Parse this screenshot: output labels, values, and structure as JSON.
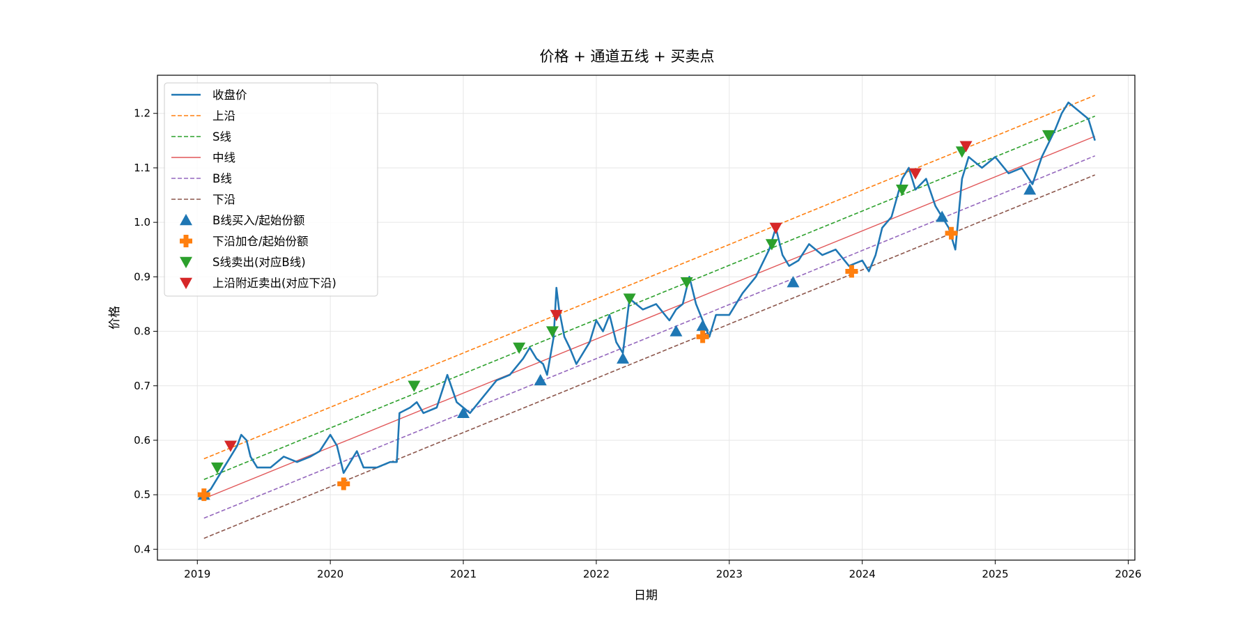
{
  "chart_data": {
    "type": "line",
    "title": "价格 + 通道五线 + 买卖点",
    "xlabel": "日期",
    "ylabel": "价格",
    "xlim": [
      2018.7,
      2026.05
    ],
    "ylim": [
      0.38,
      1.27
    ],
    "xticks": [
      2019,
      2020,
      2021,
      2022,
      2023,
      2024,
      2025,
      2026
    ],
    "xtick_labels": [
      "2019",
      "2020",
      "2021",
      "2022",
      "2023",
      "2024",
      "2025",
      "2026"
    ],
    "yticks": [
      0.4,
      0.5,
      0.6,
      0.7,
      0.8,
      0.9,
      1.0,
      1.1,
      1.2
    ],
    "ytick_labels": [
      "0.4",
      "0.5",
      "0.6",
      "0.7",
      "0.8",
      "0.9",
      "1.0",
      "1.1",
      "1.2"
    ],
    "grid": true,
    "legend_position": "upper-left",
    "series": [
      {
        "name": "收盘价",
        "style": "solid-thick",
        "color": "#1f77b4",
        "points": [
          [
            2019.05,
            0.5
          ],
          [
            2019.1,
            0.51
          ],
          [
            2019.15,
            0.53
          ],
          [
            2019.2,
            0.55
          ],
          [
            2019.25,
            0.57
          ],
          [
            2019.3,
            0.59
          ],
          [
            2019.33,
            0.61
          ],
          [
            2019.37,
            0.6
          ],
          [
            2019.4,
            0.57
          ],
          [
            2019.45,
            0.55
          ],
          [
            2019.55,
            0.55
          ],
          [
            2019.65,
            0.57
          ],
          [
            2019.75,
            0.56
          ],
          [
            2019.85,
            0.57
          ],
          [
            2019.92,
            0.58
          ],
          [
            2020.0,
            0.61
          ],
          [
            2020.05,
            0.59
          ],
          [
            2020.1,
            0.54
          ],
          [
            2020.15,
            0.56
          ],
          [
            2020.2,
            0.58
          ],
          [
            2020.25,
            0.55
          ],
          [
            2020.35,
            0.55
          ],
          [
            2020.45,
            0.56
          ],
          [
            2020.5,
            0.56
          ],
          [
            2020.52,
            0.65
          ],
          [
            2020.6,
            0.66
          ],
          [
            2020.65,
            0.67
          ],
          [
            2020.7,
            0.65
          ],
          [
            2020.8,
            0.66
          ],
          [
            2020.88,
            0.72
          ],
          [
            2020.95,
            0.67
          ],
          [
            2021.05,
            0.65
          ],
          [
            2021.15,
            0.68
          ],
          [
            2021.25,
            0.71
          ],
          [
            2021.35,
            0.72
          ],
          [
            2021.45,
            0.75
          ],
          [
            2021.5,
            0.77
          ],
          [
            2021.55,
            0.75
          ],
          [
            2021.6,
            0.74
          ],
          [
            2021.63,
            0.72
          ],
          [
            2021.68,
            0.79
          ],
          [
            2021.7,
            0.88
          ],
          [
            2021.72,
            0.84
          ],
          [
            2021.76,
            0.79
          ],
          [
            2021.8,
            0.77
          ],
          [
            2021.85,
            0.74
          ],
          [
            2021.95,
            0.78
          ],
          [
            2022.0,
            0.82
          ],
          [
            2022.05,
            0.8
          ],
          [
            2022.1,
            0.83
          ],
          [
            2022.15,
            0.78
          ],
          [
            2022.2,
            0.76
          ],
          [
            2022.25,
            0.86
          ],
          [
            2022.35,
            0.84
          ],
          [
            2022.45,
            0.85
          ],
          [
            2022.55,
            0.82
          ],
          [
            2022.6,
            0.84
          ],
          [
            2022.65,
            0.85
          ],
          [
            2022.7,
            0.9
          ],
          [
            2022.75,
            0.85
          ],
          [
            2022.8,
            0.82
          ],
          [
            2022.85,
            0.79
          ],
          [
            2022.9,
            0.83
          ],
          [
            2023.0,
            0.83
          ],
          [
            2023.1,
            0.87
          ],
          [
            2023.2,
            0.9
          ],
          [
            2023.3,
            0.95
          ],
          [
            2023.35,
            0.99
          ],
          [
            2023.4,
            0.94
          ],
          [
            2023.45,
            0.92
          ],
          [
            2023.52,
            0.93
          ],
          [
            2023.6,
            0.96
          ],
          [
            2023.7,
            0.94
          ],
          [
            2023.8,
            0.95
          ],
          [
            2023.9,
            0.92
          ],
          [
            2024.0,
            0.93
          ],
          [
            2024.05,
            0.91
          ],
          [
            2024.1,
            0.94
          ],
          [
            2024.15,
            0.99
          ],
          [
            2024.22,
            1.01
          ],
          [
            2024.3,
            1.08
          ],
          [
            2024.35,
            1.1
          ],
          [
            2024.4,
            1.06
          ],
          [
            2024.48,
            1.08
          ],
          [
            2024.55,
            1.03
          ],
          [
            2024.6,
            1.01
          ],
          [
            2024.65,
            0.99
          ],
          [
            2024.7,
            0.95
          ],
          [
            2024.75,
            1.08
          ],
          [
            2024.8,
            1.12
          ],
          [
            2024.9,
            1.1
          ],
          [
            2025.0,
            1.12
          ],
          [
            2025.1,
            1.09
          ],
          [
            2025.2,
            1.1
          ],
          [
            2025.28,
            1.07
          ],
          [
            2025.35,
            1.12
          ],
          [
            2025.45,
            1.17
          ],
          [
            2025.5,
            1.2
          ],
          [
            2025.55,
            1.22
          ],
          [
            2025.6,
            1.21
          ],
          [
            2025.65,
            1.2
          ],
          [
            2025.7,
            1.19
          ],
          [
            2025.75,
            1.15
          ]
        ]
      },
      {
        "name": "上沿",
        "style": "dashed",
        "color": "#ff7f0e",
        "points": [
          [
            2019.05,
            0.566
          ],
          [
            2025.75,
            1.233
          ]
        ]
      },
      {
        "name": "S线",
        "style": "dashed",
        "color": "#2ca02c",
        "points": [
          [
            2019.05,
            0.528
          ],
          [
            2025.75,
            1.195
          ]
        ]
      },
      {
        "name": "中线",
        "style": "solid-thin",
        "color": "#e15759",
        "points": [
          [
            2019.05,
            0.493
          ],
          [
            2025.75,
            1.158
          ]
        ]
      },
      {
        "name": "B线",
        "style": "dashed",
        "color": "#9467bd",
        "points": [
          [
            2019.05,
            0.457
          ],
          [
            2025.75,
            1.122
          ]
        ]
      },
      {
        "name": "下沿",
        "style": "dashed",
        "color": "#8c564b",
        "points": [
          [
            2019.05,
            0.42
          ],
          [
            2025.75,
            1.087
          ]
        ]
      }
    ],
    "markers": [
      {
        "name": "B线买入/起始份额",
        "shape": "triangle-up",
        "color": "#1f77b4",
        "points": [
          [
            2019.05,
            0.5
          ],
          [
            2021.0,
            0.65
          ],
          [
            2021.58,
            0.71
          ],
          [
            2022.2,
            0.75
          ],
          [
            2022.6,
            0.8
          ],
          [
            2022.8,
            0.81
          ],
          [
            2023.48,
            0.89
          ],
          [
            2024.6,
            1.01
          ],
          [
            2025.26,
            1.06
          ]
        ]
      },
      {
        "name": "下沿加仓/起始份额",
        "shape": "plus",
        "color": "#ff7f0e",
        "points": [
          [
            2019.05,
            0.5
          ],
          [
            2020.1,
            0.52
          ],
          [
            2022.8,
            0.79
          ],
          [
            2023.92,
            0.91
          ],
          [
            2024.67,
            0.98
          ]
        ]
      },
      {
        "name": "S线卖出(对应B线)",
        "shape": "triangle-down",
        "color": "#2ca02c",
        "points": [
          [
            2019.15,
            0.55
          ],
          [
            2020.63,
            0.7
          ],
          [
            2021.42,
            0.77
          ],
          [
            2021.67,
            0.8
          ],
          [
            2022.25,
            0.86
          ],
          [
            2022.68,
            0.89
          ],
          [
            2023.32,
            0.96
          ],
          [
            2024.3,
            1.06
          ],
          [
            2024.75,
            1.13
          ],
          [
            2025.4,
            1.16
          ]
        ]
      },
      {
        "name": "上沿附近卖出(对应下沿)",
        "shape": "triangle-down",
        "color": "#d62728",
        "points": [
          [
            2019.25,
            0.59
          ],
          [
            2021.7,
            0.83
          ],
          [
            2023.35,
            0.99
          ],
          [
            2024.4,
            1.09
          ],
          [
            2024.78,
            1.14
          ]
        ]
      }
    ]
  }
}
